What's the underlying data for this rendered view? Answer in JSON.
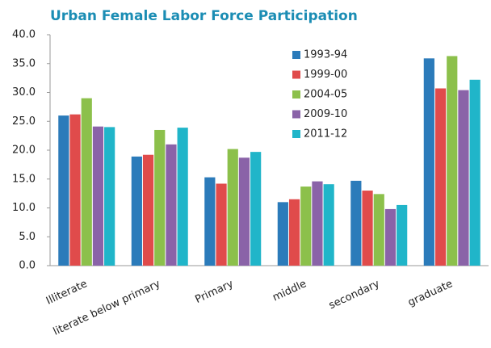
{
  "chart_data": {
    "type": "bar",
    "title": "Urban Female Labor Force Participation",
    "categories": [
      "Illiterate",
      "literate below primary",
      "Primary",
      "middle",
      "secondary",
      "graduate"
    ],
    "series": [
      {
        "name": "1993-94",
        "color": "#2b7bba",
        "values": [
          26.0,
          18.9,
          15.3,
          11.0,
          14.7,
          35.9
        ]
      },
      {
        "name": "1999-00",
        "color": "#e04b4b",
        "values": [
          26.2,
          19.2,
          14.2,
          11.5,
          13.0,
          30.7
        ]
      },
      {
        "name": "2004-05",
        "color": "#8cc04b",
        "values": [
          29.0,
          23.5,
          20.2,
          13.7,
          12.4,
          36.3
        ]
      },
      {
        "name": "2009-10",
        "color": "#8a63a8",
        "values": [
          24.1,
          21.0,
          18.7,
          14.6,
          9.8,
          30.4
        ]
      },
      {
        "name": "2011-12",
        "color": "#20b5c9",
        "values": [
          24.0,
          23.9,
          19.7,
          14.1,
          10.5,
          32.2
        ]
      }
    ],
    "ylim": [
      0,
      40
    ],
    "yticks": [
      {
        "value": 0,
        "label": "0.0"
      },
      {
        "value": 5,
        "label": "5.0"
      },
      {
        "value": 10,
        "label": "10.0"
      },
      {
        "value": 15,
        "label": "15.0"
      },
      {
        "value": 20,
        "label": "20.0"
      },
      {
        "value": 25,
        "label": "25.0"
      },
      {
        "value": 30,
        "label": "30.0"
      },
      {
        "value": 35,
        "label": "35.0"
      },
      {
        "value": 40,
        "label": "40.0"
      }
    ],
    "legend": "top-right"
  }
}
